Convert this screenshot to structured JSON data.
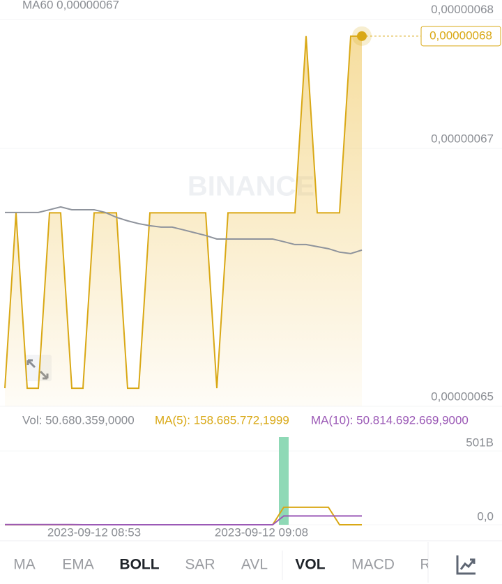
{
  "chart_data": [
    {
      "type": "area",
      "indicator_label": "MA60 0,00000067",
      "watermark": "BINANCE",
      "last_price_label": "0,00000068",
      "ylim": [
        6.5e-07,
        6.815e-07
      ],
      "yticks": [
        {
          "value": 6.8e-07,
          "label": "0,00000068"
        },
        {
          "value": 6.7e-07,
          "label": "0,00000067"
        },
        {
          "value": 6.5e-07,
          "label": "0,00000065"
        }
      ],
      "series": [
        {
          "color": "#d9a815",
          "values": [
            6.514e-07,
            6.65e-07,
            6.514e-07,
            6.514e-07,
            6.65e-07,
            6.65e-07,
            6.514e-07,
            6.514e-07,
            6.65e-07,
            6.65e-07,
            6.65e-07,
            6.514e-07,
            6.514e-07,
            6.65e-07,
            6.65e-07,
            6.65e-07,
            6.65e-07,
            6.65e-07,
            6.65e-07,
            6.514e-07,
            6.65e-07,
            6.65e-07,
            6.65e-07,
            6.65e-07,
            6.65e-07,
            6.65e-07,
            6.65e-07,
            6.787e-07,
            6.65e-07,
            6.65e-07,
            6.65e-07,
            6.787e-07,
            6.787e-07
          ]
        },
        {
          "color": "#8e939c",
          "values": [
            6.6503e-07,
            6.6503e-07,
            6.6503e-07,
            6.6503e-07,
            6.6524e-07,
            6.6546e-07,
            6.6524e-07,
            6.6524e-07,
            6.6524e-07,
            6.6503e-07,
            6.6465e-07,
            6.6438e-07,
            6.6416e-07,
            6.64e-07,
            6.6389e-07,
            6.6389e-07,
            6.6368e-07,
            6.6346e-07,
            6.6324e-07,
            6.6297e-07,
            6.6297e-07,
            6.6297e-07,
            6.6297e-07,
            6.6297e-07,
            6.6297e-07,
            6.6276e-07,
            6.6254e-07,
            6.6254e-07,
            6.6238e-07,
            6.6222e-07,
            6.6195e-07,
            6.6184e-07,
            6.6211e-07
          ]
        }
      ]
    },
    {
      "type": "bar",
      "legend": [
        {
          "text": "Vol: 50.680.359,0000",
          "color": "#8a8d93"
        },
        {
          "text": "MA(5): 158.685.772,1999",
          "color": "#d9a815"
        },
        {
          "text": "MA(10): 50.814.692.669,9000",
          "color": "#9b59b6"
        }
      ],
      "categories": [
        null,
        null,
        null,
        null,
        null,
        null,
        null,
        null,
        "2023-09-12 08:53",
        null,
        null,
        null,
        null,
        null,
        null,
        null,
        null,
        null,
        null,
        null,
        null,
        null,
        null,
        "2023-09-12 09:08",
        null,
        null,
        null,
        null,
        null,
        null,
        null,
        null,
        null
      ],
      "ylim": [
        0,
        596000000000
      ],
      "yticks": [
        {
          "value": 501000000000,
          "label": "501B"
        },
        {
          "value": 0,
          "label": "0,0"
        }
      ],
      "bar_color": "#8fd9b6",
      "values": [
        0,
        3000000000,
        0,
        0,
        0,
        0,
        0,
        0,
        0,
        0,
        0,
        0,
        0,
        0,
        3000000000,
        0,
        0,
        0,
        0,
        0,
        0,
        0,
        0,
        0,
        0,
        596000000000,
        0,
        0,
        0,
        0,
        0,
        0,
        0
      ],
      "series": [
        {
          "color": "#d9a815",
          "values": [
            0,
            0,
            0,
            0,
            0,
            0,
            0,
            0,
            0,
            0,
            0,
            0,
            0,
            0,
            0,
            0,
            0,
            0,
            0,
            0,
            0,
            0,
            0,
            0,
            0,
            119000000000,
            119000000000,
            119000000000,
            119000000000,
            119000000000,
            0,
            0,
            0
          ]
        },
        {
          "color": "#9b59b6",
          "values": [
            1000000000,
            1000000000,
            1000000000,
            1000000000,
            1000000000,
            1000000000,
            1000000000,
            0,
            0,
            0,
            0,
            0,
            0,
            0,
            0,
            0,
            0,
            0,
            0,
            0,
            0,
            0,
            0,
            0,
            0,
            59600000000,
            59600000000,
            59600000000,
            59600000000,
            59600000000,
            59600000000,
            59600000000,
            59600000000
          ]
        }
      ]
    }
  ],
  "tabs": {
    "main": [
      "MA",
      "EMA",
      "BOLL",
      "SAR",
      "AVL"
    ],
    "sub": [
      "VOL",
      "MACD",
      "R"
    ],
    "active": [
      "BOLL",
      "VOL"
    ]
  }
}
